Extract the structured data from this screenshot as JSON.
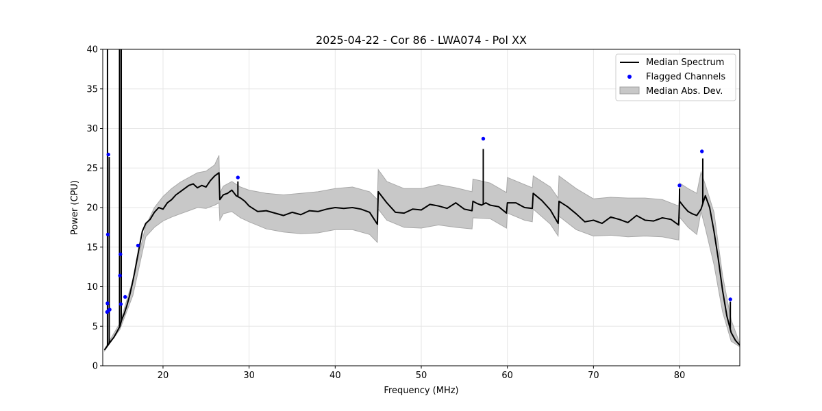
{
  "chart_data": {
    "type": "line",
    "title": "2025-04-22 - Cor 86 - LWA074 - Pol XX",
    "xlabel": "Frequency (MHz)",
    "ylabel": "Power (CPU)",
    "xlim": [
      13.0,
      87.0
    ],
    "ylim": [
      0,
      40
    ],
    "xticks": [
      20,
      30,
      40,
      50,
      60,
      70,
      80
    ],
    "yticks": [
      0,
      5,
      10,
      15,
      20,
      25,
      30,
      35,
      40
    ],
    "grid": true,
    "legend_position": "top-right",
    "legend": [
      {
        "label": "Median Spectrum",
        "kind": "line",
        "color": "#000000"
      },
      {
        "label": "Flagged Channels",
        "kind": "marker",
        "color": "#0000ff"
      },
      {
        "label": "Median Abs. Dev.",
        "kind": "band",
        "color": "#c8c8c8"
      }
    ],
    "series": [
      {
        "name": "Median Spectrum",
        "color": "#000000",
        "x": [
          13.2,
          13.4,
          13.6,
          13.8,
          14.0,
          14.3,
          14.6,
          15.0,
          15.2,
          15.5,
          15.8,
          16.1,
          16.4,
          16.7,
          17.0,
          17.3,
          17.6,
          18.0,
          18.5,
          19.0,
          19.5,
          20.0,
          20.5,
          21.0,
          21.5,
          22.0,
          22.5,
          23.0,
          23.5,
          24.0,
          24.5,
          25.0,
          25.5,
          26.0,
          26.5,
          26.6,
          27.0,
          27.5,
          28.0,
          28.5,
          29.0,
          29.5,
          30.0,
          31.0,
          32.0,
          33.0,
          34.0,
          35.0,
          36.0,
          37.0,
          38.0,
          39.0,
          40.0,
          41.0,
          42.0,
          43.0,
          44.0,
          44.9,
          45.0,
          46.0,
          47.0,
          48.0,
          49.0,
          50.0,
          51.0,
          52.0,
          53.0,
          54.0,
          55.0,
          55.9,
          56.0,
          56.5,
          57.0,
          57.5,
          58.0,
          59.0,
          59.9,
          60.0,
          61.0,
          62.0,
          62.9,
          63.0,
          64.0,
          65.0,
          65.9,
          66.0,
          67.0,
          68.0,
          69.0,
          70.0,
          71.0,
          72.0,
          73.0,
          74.0,
          75.0,
          76.0,
          77.0,
          78.0,
          79.0,
          79.9,
          80.0,
          80.5,
          81.0,
          81.5,
          82.0,
          82.5,
          83.0,
          83.5,
          84.0,
          84.5,
          85.0,
          85.5,
          86.0,
          86.5,
          87.0
        ],
        "y": [
          2.0,
          2.3,
          2.6,
          2.9,
          3.2,
          3.6,
          4.2,
          5.0,
          5.8,
          6.6,
          7.6,
          8.8,
          10.2,
          11.8,
          13.6,
          15.3,
          17.0,
          18.0,
          18.5,
          19.4,
          20.0,
          19.8,
          20.6,
          21.0,
          21.6,
          22.0,
          22.4,
          22.8,
          23.0,
          22.5,
          22.8,
          22.6,
          23.4,
          24.0,
          24.4,
          21.0,
          21.6,
          21.8,
          22.2,
          21.5,
          21.2,
          20.8,
          20.2,
          19.5,
          19.6,
          19.3,
          19.0,
          19.4,
          19.1,
          19.6,
          19.5,
          19.8,
          20.0,
          19.9,
          20.0,
          19.8,
          19.4,
          17.9,
          22.0,
          20.6,
          19.4,
          19.3,
          19.8,
          19.7,
          20.4,
          20.2,
          19.9,
          20.6,
          19.8,
          19.6,
          20.8,
          20.5,
          20.3,
          20.6,
          20.3,
          20.1,
          19.3,
          20.6,
          20.6,
          20.0,
          19.9,
          21.8,
          20.9,
          19.7,
          18.0,
          20.8,
          20.1,
          19.2,
          18.2,
          18.4,
          18.0,
          18.8,
          18.5,
          18.1,
          19.0,
          18.4,
          18.3,
          18.7,
          18.5,
          17.8,
          20.8,
          20.1,
          19.5,
          19.2,
          19.0,
          19.8,
          21.5,
          20.0,
          17.0,
          13.5,
          9.5,
          6.3,
          4.2,
          3.2,
          2.6
        ]
      },
      {
        "name": "Median Abs. Dev.",
        "color": "#c8c8c8",
        "x": [
          13.2,
          15.0,
          16.5,
          18.0,
          19.0,
          20.0,
          21.0,
          22.0,
          23.0,
          24.0,
          25.0,
          26.0,
          26.5,
          26.6,
          27.0,
          28.0,
          29.0,
          30.0,
          32.0,
          34.0,
          36.0,
          38.0,
          40.0,
          42.0,
          44.0,
          44.9,
          45.0,
          46.0,
          48.0,
          50.0,
          52.0,
          54.0,
          55.9,
          56.0,
          58.0,
          59.9,
          60.0,
          62.0,
          62.9,
          63.0,
          65.0,
          65.9,
          66.0,
          68.0,
          70.0,
          72.0,
          74.0,
          76.0,
          78.0,
          79.9,
          80.0,
          81.0,
          82.0,
          82.5,
          83.0,
          84.0,
          85.0,
          86.0,
          87.0
        ],
        "lower": [
          1.9,
          4.6,
          8.9,
          16.3,
          17.5,
          18.3,
          18.8,
          19.2,
          19.6,
          20.0,
          19.9,
          20.3,
          20.6,
          18.4,
          19.2,
          19.5,
          18.7,
          18.2,
          17.3,
          16.9,
          16.7,
          16.8,
          17.2,
          17.2,
          16.6,
          15.6,
          19.8,
          18.4,
          17.5,
          17.4,
          17.8,
          17.5,
          17.3,
          18.7,
          18.6,
          17.4,
          19.3,
          18.4,
          18.2,
          19.8,
          17.9,
          16.4,
          18.9,
          17.2,
          16.4,
          16.5,
          16.3,
          16.4,
          16.3,
          15.9,
          18.8,
          17.5,
          16.6,
          19.5,
          17.4,
          12.8,
          6.8,
          3.1,
          2.4
        ],
        "upper": [
          2.1,
          5.4,
          10.9,
          17.7,
          20.0,
          21.4,
          22.4,
          23.2,
          23.8,
          24.4,
          24.6,
          25.4,
          26.6,
          21.8,
          22.7,
          23.3,
          22.6,
          22.2,
          21.8,
          21.6,
          21.8,
          22.0,
          22.4,
          22.6,
          22.0,
          21.0,
          24.8,
          23.3,
          22.4,
          22.4,
          22.9,
          22.5,
          22.0,
          23.6,
          23.1,
          21.9,
          23.8,
          22.9,
          22.5,
          24.0,
          22.6,
          21.2,
          24.0,
          22.4,
          21.1,
          21.3,
          21.2,
          21.2,
          21.0,
          20.2,
          23.1,
          22.4,
          21.8,
          24.5,
          22.9,
          19.4,
          11.4,
          5.8,
          2.8
        ]
      }
    ],
    "spikes": [
      {
        "x": 13.55,
        "y": 40
      },
      {
        "x": 13.75,
        "y": 26.4
      },
      {
        "x": 14.95,
        "y": 40
      },
      {
        "x": 15.15,
        "y": 40
      },
      {
        "x": 28.7,
        "y": 23.3
      },
      {
        "x": 57.2,
        "y": 27.4
      },
      {
        "x": 80.0,
        "y": 22.4
      },
      {
        "x": 82.7,
        "y": 26.2
      },
      {
        "x": 85.9,
        "y": 8.1
      }
    ],
    "flagged_channels": {
      "x": [
        13.5,
        13.55,
        13.6,
        13.65,
        13.7,
        13.8,
        15.0,
        15.05,
        15.1,
        15.6,
        17.1,
        28.7,
        57.2,
        80.0,
        82.6,
        85.9
      ],
      "y": [
        6.8,
        7.9,
        16.6,
        26.7,
        7.0,
        7.1,
        11.4,
        14.1,
        7.8,
        8.7,
        15.2,
        23.8,
        28.7,
        22.8,
        27.1,
        8.4
      ]
    }
  }
}
